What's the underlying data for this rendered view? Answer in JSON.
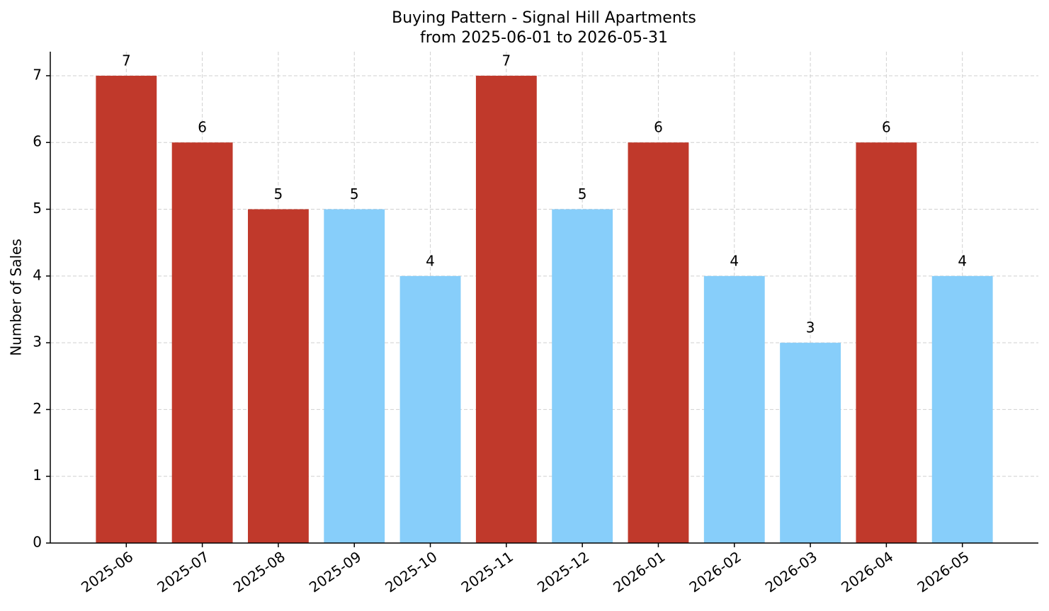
{
  "chart_data": {
    "type": "bar",
    "title": "Buying Pattern - Signal Hill Apartments",
    "subtitle": "from 2025-06-01 to 2026-05-31",
    "y_label": "Number of Sales",
    "categories": [
      "2025-06",
      "2025-07",
      "2025-08",
      "2025-09",
      "2025-10",
      "2025-11",
      "2025-12",
      "2026-01",
      "2026-02",
      "2026-03",
      "2026-04",
      "2026-05"
    ],
    "values": [
      7,
      6,
      5,
      5,
      4,
      7,
      5,
      6,
      4,
      3,
      6,
      4
    ],
    "colors": [
      "#c0392b",
      "#c0392b",
      "#c0392b",
      "#87cefa",
      "#87cefa",
      "#c0392b",
      "#87cefa",
      "#c0392b",
      "#87cefa",
      "#87cefa",
      "#c0392b",
      "#87cefa"
    ],
    "ylim": [
      0,
      7.36
    ],
    "yticks": [
      0,
      1,
      2,
      3,
      4,
      5,
      6,
      7
    ],
    "grid": true
  }
}
